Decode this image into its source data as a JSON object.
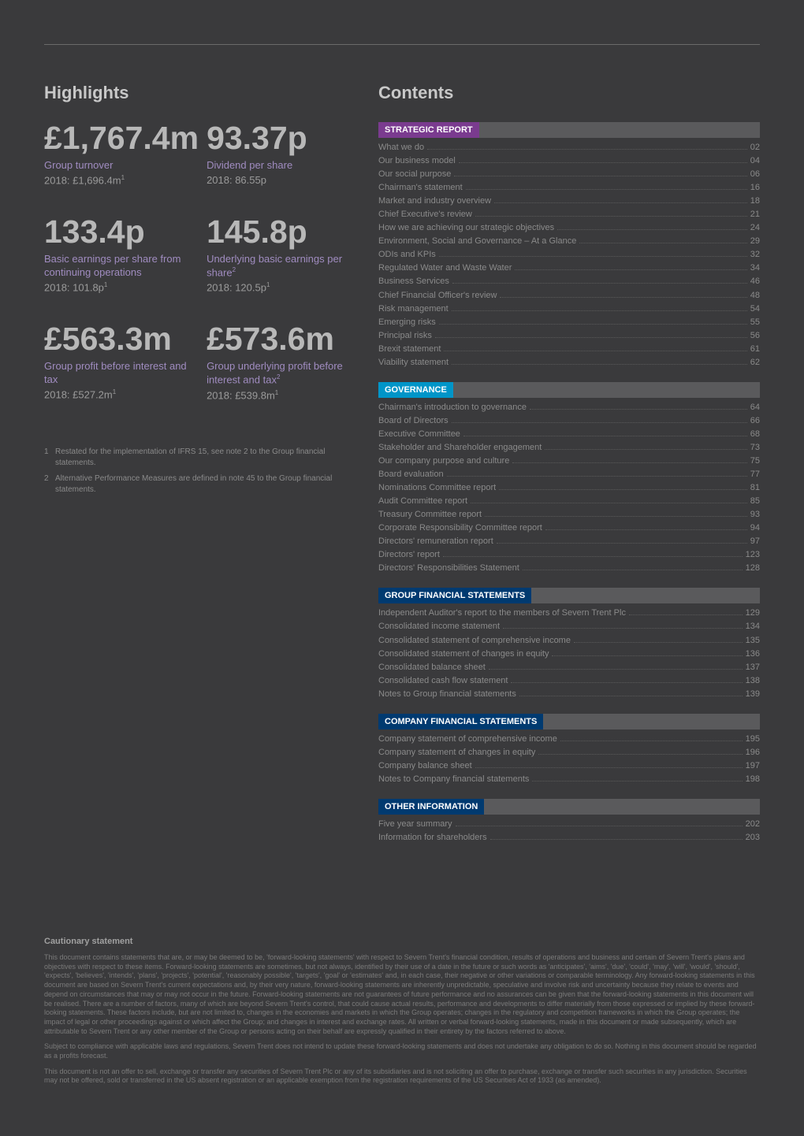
{
  "highlights": {
    "heading": "Highlights",
    "stats": [
      {
        "value": "£1,767.4m",
        "label": "Group turnover",
        "prev": "2018: £1,696.4m",
        "prev_sup": "1"
      },
      {
        "value": "93.37p",
        "label": "Dividend per share",
        "prev": "2018: 86.55p",
        "prev_sup": ""
      },
      {
        "value": "133.4p",
        "label": "Basic earnings per share from continuing operations",
        "prev": "2018: 101.8p",
        "prev_sup": "1"
      },
      {
        "value": "145.8p",
        "label": "Underlying basic earnings per share",
        "label_sup": "2",
        "prev": "2018: 120.5p",
        "prev_sup": "1"
      },
      {
        "value": "£563.3m",
        "label": "Group profit before interest and tax",
        "prev": "2018: £527.2m",
        "prev_sup": "1"
      },
      {
        "value": "£573.6m",
        "label": "Group underlying profit before interest and tax",
        "label_sup": "2",
        "prev": "2018: £539.8m",
        "prev_sup": "1"
      }
    ],
    "footnotes": [
      {
        "num": "1",
        "text": "Restated for the implementation of IFRS 15, see note 2 to the Group financial statements."
      },
      {
        "num": "2",
        "text": "Alternative Performance Measures are defined in note 45 to the Group financial statements."
      }
    ]
  },
  "contents": {
    "heading": "Contents",
    "sections": [
      {
        "title": "STRATEGIC REPORT",
        "bar_color": "#7a3b8f",
        "items": [
          {
            "label": "What we do",
            "page": "02"
          },
          {
            "label": "Our business model",
            "page": "04"
          },
          {
            "label": "Our social purpose",
            "page": "06"
          },
          {
            "label": "Chairman's statement",
            "page": "16"
          },
          {
            "label": "Market and industry overview",
            "page": "18"
          },
          {
            "label": "Chief Executive's review",
            "page": "21"
          },
          {
            "label": "How we are achieving our strategic objectives",
            "page": "24"
          },
          {
            "label": "Environment, Social and Governance – At a Glance",
            "page": "29"
          },
          {
            "label": "ODIs and KPIs",
            "page": "32"
          },
          {
            "label": "Regulated Water and Waste Water",
            "page": "34"
          },
          {
            "label": "Business Services",
            "page": "46"
          },
          {
            "label": "Chief Financial Officer's review",
            "page": "48"
          },
          {
            "label": "Risk management",
            "page": "54"
          },
          {
            "label": "Emerging risks",
            "page": "55"
          },
          {
            "label": "Principal risks",
            "page": "56"
          },
          {
            "label": "Brexit statement",
            "page": "61"
          },
          {
            "label": "Viability statement",
            "page": "62"
          }
        ]
      },
      {
        "title": "GOVERNANCE",
        "bar_color": "#0095c8",
        "items": [
          {
            "label": "Chairman's introduction to governance",
            "page": "64"
          },
          {
            "label": "Board of Directors",
            "page": "66"
          },
          {
            "label": "Executive Committee",
            "page": "68"
          },
          {
            "label": "Stakeholder and Shareholder engagement",
            "page": "73"
          },
          {
            "label": "Our company purpose and culture",
            "page": "75"
          },
          {
            "label": "Board evaluation",
            "page": "77"
          },
          {
            "label": "Nominations Committee report",
            "page": "81"
          },
          {
            "label": "Audit Committee report",
            "page": "85"
          },
          {
            "label": "Treasury Committee report",
            "page": "93"
          },
          {
            "label": "Corporate Responsibility Committee report",
            "page": "94"
          },
          {
            "label": "Directors' remuneration report",
            "page": "97"
          },
          {
            "label": "Directors' report",
            "page": "123"
          },
          {
            "label": "Directors' Responsibilities Statement",
            "page": "128"
          }
        ]
      },
      {
        "title": "GROUP FINANCIAL STATEMENTS",
        "bar_color": "#003a70",
        "items": [
          {
            "label": "Independent Auditor's report to the members of Severn Trent Plc",
            "page": "129"
          },
          {
            "label": "Consolidated income statement",
            "page": "134"
          },
          {
            "label": "Consolidated statement of comprehensive income",
            "page": "135"
          },
          {
            "label": "Consolidated statement of changes in equity",
            "page": "136"
          },
          {
            "label": "Consolidated balance sheet",
            "page": "137"
          },
          {
            "label": "Consolidated cash flow statement",
            "page": "138"
          },
          {
            "label": "Notes to Group financial statements",
            "page": "139"
          }
        ]
      },
      {
        "title": "COMPANY FINANCIAL STATEMENTS",
        "bar_color": "#003a70",
        "items": [
          {
            "label": "Company statement of comprehensive income",
            "page": "195"
          },
          {
            "label": "Company statement of changes in equity",
            "page": "196"
          },
          {
            "label": "Company balance sheet",
            "page": "197"
          },
          {
            "label": "Notes to Company financial statements",
            "page": "198"
          }
        ]
      },
      {
        "title": "OTHER INFORMATION",
        "bar_color": "#003a70",
        "items": [
          {
            "label": "Five year summary",
            "page": "202"
          },
          {
            "label": "Information for shareholders",
            "page": "203"
          }
        ]
      }
    ]
  },
  "cautionary": {
    "title": "Cautionary statement",
    "paragraphs": [
      "This document contains statements that are, or may be deemed to be, 'forward-looking statements' with respect to Severn Trent's financial condition, results of operations and business and certain of Severn Trent's plans and objectives with respect to these items. Forward-looking statements are sometimes, but not always, identified by their use of a date in the future or such words as 'anticipates', 'aims', 'due', 'could', 'may', 'will', 'would', 'should', 'expects', 'believes', 'intends', 'plans', 'projects', 'potential', 'reasonably possible', 'targets', 'goal' or 'estimates' and, in each case, their negative or other variations or comparable terminology. Any forward-looking statements in this document are based on Severn Trent's current expectations and, by their very nature, forward-looking statements are inherently unpredictable, speculative and involve risk and uncertainty because they relate to events and depend on circumstances that may or may not occur in the future. Forward-looking statements are not guarantees of future performance and no assurances can be given that the forward-looking statements in this document will be realised. There are a number of factors, many of which are beyond Severn Trent's control, that could cause actual results, performance and developments to differ materially from those expressed or implied by these forward-looking statements. These factors include, but are not limited to, changes in the economies and markets in which the Group operates; changes in the regulatory and competition frameworks in which the Group operates; the impact of legal or other proceedings against or which affect the Group; and changes in interest and exchange rates. All written or verbal forward-looking statements, made in this document or made subsequently, which are attributable to Severn Trent or any other member of the Group or persons acting on their behalf are expressly qualified in their entirety by the factors referred to above.",
      "Subject to compliance with applicable laws and regulations, Severn Trent does not intend to update these forward-looking statements and does not undertake any obligation to do so. Nothing in this document should be regarded as a profits forecast.",
      "This document is not an offer to sell, exchange or transfer any securities of Severn Trent Plc or any of its subsidiaries and is not soliciting an offer to purchase, exchange or transfer such securities in any jurisdiction. Securities may not be offered, sold or transferred in the US absent registration or an applicable exemption from the registration requirements of the US Securities Act of 1933 (as amended)."
    ]
  },
  "colors": {
    "stat_value": "#b8b8b8",
    "stat_label": "#a08cc0",
    "background": "#3a3a3c"
  }
}
